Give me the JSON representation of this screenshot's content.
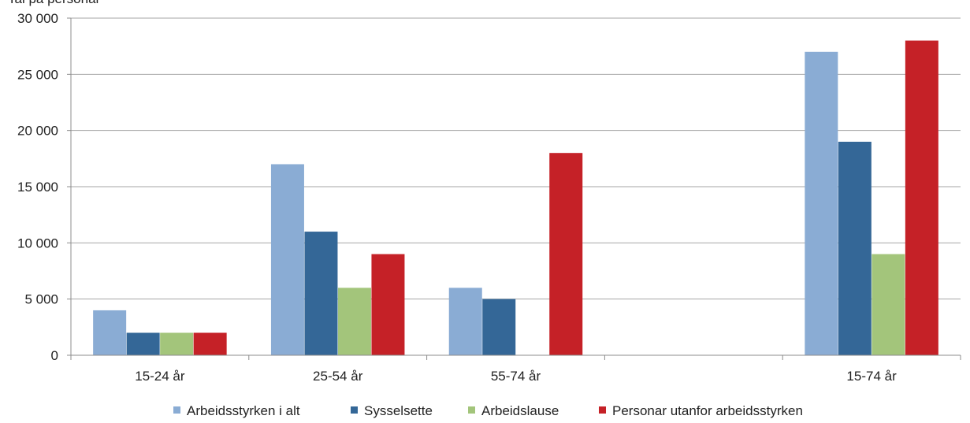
{
  "chart_data": {
    "type": "bar",
    "ylabel": "Tal på personar",
    "ylim": [
      0,
      30000
    ],
    "yticks": [
      0,
      5000,
      10000,
      15000,
      20000,
      25000,
      30000
    ],
    "ytick_labels": [
      "0",
      "5 000",
      "10 000",
      "15 000",
      "20 000",
      "25 000",
      "30 000"
    ],
    "grid": true,
    "legend_position": "bottom",
    "categories": [
      "15-24 år",
      "25-54 år",
      "55-74 år",
      "",
      "15-74 år"
    ],
    "series": [
      {
        "name": "Arbeidsstyrken i alt",
        "color": "#8aacd4",
        "values": [
          4000,
          17000,
          6000,
          null,
          27000
        ]
      },
      {
        "name": "Sysselsette",
        "color": "#346797",
        "values": [
          2000,
          11000,
          5000,
          null,
          19000
        ]
      },
      {
        "name": "Arbeidslause",
        "color": "#a3c57b",
        "values": [
          2000,
          6000,
          null,
          null,
          9000
        ]
      },
      {
        "name": "Personar utanfor arbeidsstyrken",
        "color": "#c52127",
        "values": [
          2000,
          9000,
          18000,
          null,
          28000
        ]
      }
    ]
  }
}
